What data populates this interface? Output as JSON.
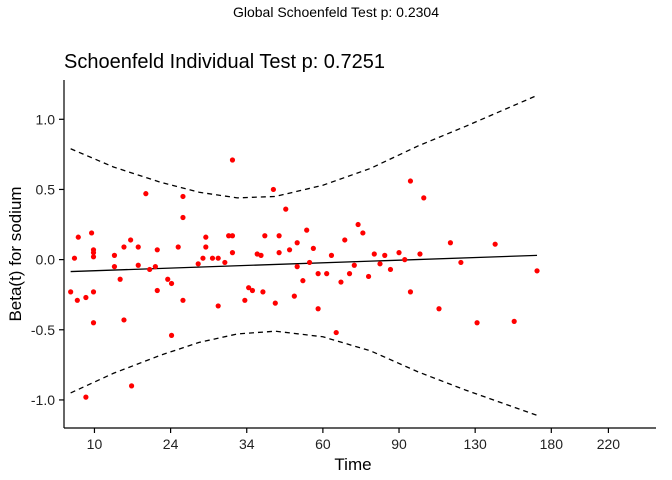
{
  "global_title": "Global Schoenfeld Test p: 0.2304",
  "chart_data": {
    "type": "scatter",
    "title": "Schoenfeld Individual Test p: 0.7251",
    "xlabel": "Time",
    "ylabel": "Beta(t) for sodium",
    "ylim": [
      -1.2,
      1.28
    ],
    "y_ticks": [
      1.0,
      0.5,
      0.0,
      -0.5,
      -1.0
    ],
    "y_tick_labels": [
      "1.0",
      "0.5",
      "0.0",
      "-0.5",
      "-1.0"
    ],
    "x_ticks": [
      10,
      24,
      34,
      60,
      90,
      130,
      180,
      220
    ],
    "x_tick_labels": [
      "10",
      "24",
      "34",
      "60",
      "90",
      "130",
      "180",
      "220"
    ],
    "x_tick_rank_positions": [
      1,
      9,
      17,
      25,
      33,
      41,
      49,
      55
    ],
    "x_rank_range": [
      -2.2,
      60.0
    ],
    "point_color": "#ff0000",
    "series": [
      {
        "type": "scatter",
        "points": [
          {
            "x": -1.5,
            "y": -0.23
          },
          {
            "x": -1.1,
            "y": 0.01
          },
          {
            "x": -0.8,
            "y": -0.29
          },
          {
            "x": -0.7,
            "y": 0.16
          },
          {
            "x": 0.1,
            "y": -0.98
          },
          {
            "x": 0.1,
            "y": -0.27
          },
          {
            "x": 0.7,
            "y": 0.19
          },
          {
            "x": 0.9,
            "y": 0.02
          },
          {
            "x": 0.9,
            "y": 0.07
          },
          {
            "x": 0.9,
            "y": 0.05
          },
          {
            "x": 0.9,
            "y": -0.23
          },
          {
            "x": 0.9,
            "y": -0.45
          },
          {
            "x": 3.1,
            "y": 0.03
          },
          {
            "x": 3.1,
            "y": -0.05
          },
          {
            "x": 3.7,
            "y": -0.14
          },
          {
            "x": 4.1,
            "y": -0.43
          },
          {
            "x": 4.1,
            "y": 0.09
          },
          {
            "x": 4.8,
            "y": 0.14
          },
          {
            "x": 4.9,
            "y": -0.9
          },
          {
            "x": 5.6,
            "y": -0.04
          },
          {
            "x": 5.6,
            "y": 0.09
          },
          {
            "x": 6.4,
            "y": 0.47
          },
          {
            "x": 6.8,
            "y": -0.07
          },
          {
            "x": 7.4,
            "y": -0.05
          },
          {
            "x": 7.6,
            "y": 0.07
          },
          {
            "x": 7.6,
            "y": -0.22
          },
          {
            "x": 8.7,
            "y": -0.14
          },
          {
            "x": 9.1,
            "y": -0.54
          },
          {
            "x": 9.1,
            "y": -0.17
          },
          {
            "x": 9.8,
            "y": 0.09
          },
          {
            "x": 10.3,
            "y": 0.45
          },
          {
            "x": 10.3,
            "y": 0.3
          },
          {
            "x": 10.3,
            "y": -0.29
          },
          {
            "x": 11.9,
            "y": -0.03
          },
          {
            "x": 12.4,
            "y": 0.01
          },
          {
            "x": 12.7,
            "y": 0.09
          },
          {
            "x": 12.7,
            "y": 0.16
          },
          {
            "x": 13.4,
            "y": 0.01
          },
          {
            "x": 14.0,
            "y": -0.33
          },
          {
            "x": 14.0,
            "y": 0.01
          },
          {
            "x": 14.7,
            "y": -0.02
          },
          {
            "x": 15.1,
            "y": 0.17
          },
          {
            "x": 15.5,
            "y": 0.71
          },
          {
            "x": 15.5,
            "y": 0.17
          },
          {
            "x": 15.5,
            "y": 0.05
          },
          {
            "x": 16.8,
            "y": -0.29
          },
          {
            "x": 17.2,
            "y": -0.2
          },
          {
            "x": 17.6,
            "y": -0.22
          },
          {
            "x": 18.1,
            "y": 0.04
          },
          {
            "x": 18.5,
            "y": 0.03
          },
          {
            "x": 18.7,
            "y": -0.23
          },
          {
            "x": 18.9,
            "y": 0.17
          },
          {
            "x": 19.8,
            "y": 0.5
          },
          {
            "x": 20.0,
            "y": -0.31
          },
          {
            "x": 20.4,
            "y": 0.05
          },
          {
            "x": 20.4,
            "y": 0.17
          },
          {
            "x": 21.1,
            "y": 0.36
          },
          {
            "x": 21.5,
            "y": 0.07
          },
          {
            "x": 22.0,
            "y": -0.26
          },
          {
            "x": 22.3,
            "y": 0.12
          },
          {
            "x": 22.3,
            "y": -0.05
          },
          {
            "x": 22.9,
            "y": -0.15
          },
          {
            "x": 23.3,
            "y": 0.21
          },
          {
            "x": 23.6,
            "y": -0.02
          },
          {
            "x": 24.0,
            "y": 0.08
          },
          {
            "x": 24.5,
            "y": -0.1
          },
          {
            "x": 24.5,
            "y": -0.35
          },
          {
            "x": 25.4,
            "y": -0.1
          },
          {
            "x": 25.9,
            "y": 0.03
          },
          {
            "x": 26.4,
            "y": -0.52
          },
          {
            "x": 26.9,
            "y": -0.16
          },
          {
            "x": 27.3,
            "y": 0.14
          },
          {
            "x": 27.8,
            "y": -0.1
          },
          {
            "x": 28.3,
            "y": -0.04
          },
          {
            "x": 28.7,
            "y": 0.25
          },
          {
            "x": 29.2,
            "y": 0.19
          },
          {
            "x": 29.8,
            "y": -0.12
          },
          {
            "x": 30.4,
            "y": 0.04
          },
          {
            "x": 31.0,
            "y": -0.03
          },
          {
            "x": 31.5,
            "y": 0.03
          },
          {
            "x": 32.1,
            "y": -0.07
          },
          {
            "x": 33.0,
            "y": 0.05
          },
          {
            "x": 33.6,
            "y": 0.0
          },
          {
            "x": 34.2,
            "y": 0.56
          },
          {
            "x": 34.2,
            "y": -0.23
          },
          {
            "x": 35.2,
            "y": 0.04
          },
          {
            "x": 35.6,
            "y": 0.44
          },
          {
            "x": 37.2,
            "y": -0.35
          },
          {
            "x": 38.4,
            "y": 0.12
          },
          {
            "x": 39.5,
            "y": -0.02
          },
          {
            "x": 41.2,
            "y": -0.45
          },
          {
            "x": 43.1,
            "y": 0.11
          },
          {
            "x": 45.1,
            "y": -0.44
          },
          {
            "x": 47.5,
            "y": -0.08
          }
        ]
      },
      {
        "type": "line",
        "style": "solid",
        "points": [
          {
            "x": -1.5,
            "y": -0.085
          },
          {
            "x": 47.5,
            "y": 0.03
          }
        ]
      },
      {
        "type": "line",
        "style": "dashed",
        "band": "upper",
        "points": [
          {
            "x": -1.5,
            "y": 0.79
          },
          {
            "x": 3,
            "y": 0.66
          },
          {
            "x": 8,
            "y": 0.55
          },
          {
            "x": 12,
            "y": 0.48
          },
          {
            "x": 16,
            "y": 0.44
          },
          {
            "x": 20,
            "y": 0.45
          },
          {
            "x": 25,
            "y": 0.53
          },
          {
            "x": 30,
            "y": 0.65
          },
          {
            "x": 35,
            "y": 0.81
          },
          {
            "x": 40,
            "y": 0.95
          },
          {
            "x": 47.5,
            "y": 1.17
          }
        ]
      },
      {
        "type": "line",
        "style": "dashed",
        "band": "lower",
        "points": [
          {
            "x": -1.5,
            "y": -0.95
          },
          {
            "x": 3,
            "y": -0.81
          },
          {
            "x": 8,
            "y": -0.68
          },
          {
            "x": 12,
            "y": -0.59
          },
          {
            "x": 16,
            "y": -0.53
          },
          {
            "x": 20,
            "y": -0.51
          },
          {
            "x": 25,
            "y": -0.55
          },
          {
            "x": 30,
            "y": -0.65
          },
          {
            "x": 35,
            "y": -0.8
          },
          {
            "x": 40,
            "y": -0.93
          },
          {
            "x": 47.5,
            "y": -1.11
          }
        ]
      }
    ]
  }
}
